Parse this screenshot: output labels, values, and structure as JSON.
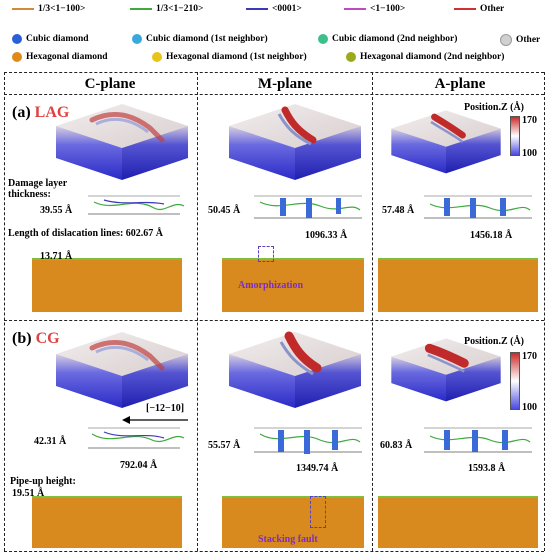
{
  "legend_lines": [
    {
      "label": "1/3<1−100>",
      "color": "#d28a3a"
    },
    {
      "label": "1/3<1−210>",
      "color": "#3faa3f"
    },
    {
      "label": "<0001>",
      "color": "#3a3ab8"
    },
    {
      "label": "<1−100>",
      "color": "#c04ac0"
    },
    {
      "label": "Other",
      "color": "#d23030"
    }
  ],
  "legend_atoms": [
    {
      "label": "Cubic diamond",
      "color": "#2a5fd8"
    },
    {
      "label": "Cubic diamond (1st neighbor)",
      "color": "#39a8e0"
    },
    {
      "label": "Cubic diamond (2nd neighbor)",
      "color": "#3dbf8a"
    },
    {
      "label": "Other",
      "color": "#d0d0d0"
    },
    {
      "label": "Hexagonal diamond",
      "color": "#e08a1a"
    },
    {
      "label": "Hexagonal diamond (1st neighbor)",
      "color": "#e8c41a"
    },
    {
      "label": "Hexagonal diamond (2nd neighbor)",
      "color": "#9aaa1a"
    }
  ],
  "columns": [
    "C-plane",
    "M-plane",
    "A-plane"
  ],
  "panels": {
    "a": {
      "tag": "(a)",
      "name": "LAG",
      "colorbar_title": "Position.Z (Å)",
      "colorbar_max": "170",
      "colorbar_min": "100",
      "damage_label": "Damage layer thickness:",
      "length_label": "Length of dislacation lines: 602.67 Å",
      "c_depth": "39.55 Å",
      "c_pile": "13.71 Å",
      "m_depth": "50.45 Å",
      "m_length": "1096.33 Å",
      "m_annot": "Amorphization",
      "a_depth": "57.48 Å",
      "a_length": "1456.18 Å"
    },
    "b": {
      "tag": "(b)",
      "name": "CG",
      "colorbar_title": "Position.Z (Å)",
      "colorbar_max": "170",
      "colorbar_min": "100",
      "direction": "[−12−10]",
      "pile_label": "Pipe-up height:",
      "c_depth": "42.31 Å",
      "c_length": "792.04 Å",
      "c_pile": "19.51 Å",
      "m_depth": "55.57 Å",
      "m_length": "1349.74 Å",
      "m_annot": "Stacking fault",
      "a_depth": "60.83 Å",
      "a_length": "1593.8 Å"
    }
  }
}
